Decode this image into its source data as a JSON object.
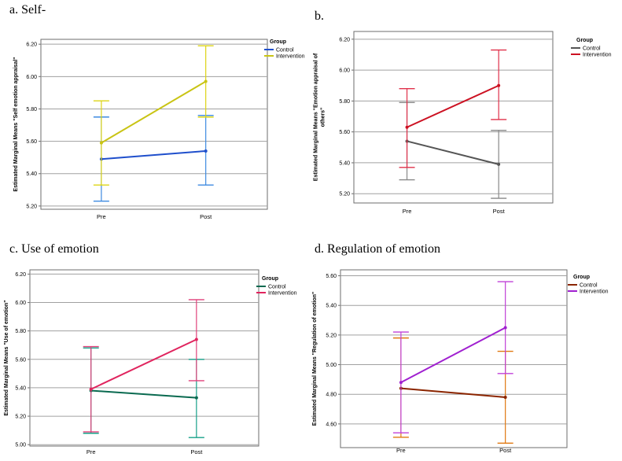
{
  "legend_title": "Group",
  "legend_labels": [
    "Control",
    "Intervention"
  ],
  "categories": [
    "Pre",
    "Post"
  ],
  "chart_data": [
    {
      "type": "line",
      "title": "a. Self-",
      "ylabel": "Estimated Marginal Means \"Self emotion appraisal\"",
      "ylabel_lines": [
        "Estimated Marginal Means \"Self emotion appraisal\""
      ],
      "categories": [
        "Pre",
        "Post"
      ],
      "ylim": [
        5.18,
        6.23
      ],
      "yticks": [
        5.2,
        5.4,
        5.6,
        5.8,
        6.0,
        6.2
      ],
      "ytick_labels": [
        "5.20",
        "5.40",
        "5.60",
        "5.80",
        "6.00",
        "6.20"
      ],
      "grid": true,
      "legend": "top-right",
      "series": [
        {
          "name": "Control",
          "color": "#1f4fcc",
          "error_color": "#3d8ae0",
          "values": [
            5.49,
            5.54
          ],
          "lower": [
            5.23,
            5.33
          ],
          "upper": [
            5.75,
            5.76
          ]
        },
        {
          "name": "Intervention",
          "color": "#c9c414",
          "error_color": "#ddd414",
          "values": [
            5.59,
            5.97
          ],
          "lower": [
            5.33,
            5.75
          ],
          "upper": [
            5.85,
            6.19
          ]
        }
      ]
    },
    {
      "type": "line",
      "title": "b.",
      "ylabel": "Estimated Marginal Means \"Emotion appraisal of others\"",
      "ylabel_lines": [
        "Estimated Marginal Means \"Emotion appraisal of",
        "others\""
      ],
      "categories": [
        "Pre",
        "Post"
      ],
      "ylim": [
        5.14,
        6.25
      ],
      "yticks": [
        5.2,
        5.4,
        5.6,
        5.8,
        6.0,
        6.2
      ],
      "ytick_labels": [
        "5.20",
        "5.40",
        "5.60",
        "5.80",
        "6.00",
        "6.20"
      ],
      "grid": true,
      "legend": "top-right",
      "series": [
        {
          "name": "Control",
          "color": "#555555",
          "error_color": "#888888",
          "values": [
            5.54,
            5.39
          ],
          "lower": [
            5.29,
            5.17
          ],
          "upper": [
            5.79,
            5.61
          ]
        },
        {
          "name": "Intervention",
          "color": "#cc1122",
          "error_color": "#e0304a",
          "values": [
            5.63,
            5.9
          ],
          "lower": [
            5.37,
            5.68
          ],
          "upper": [
            5.88,
            6.13
          ]
        }
      ]
    },
    {
      "type": "line",
      "title": "c. Use of emotion",
      "ylabel": "Estimated Marginal Means \"Use of emotion\"",
      "ylabel_lines": [
        "Estimated Marginal Means \"Use of emotion\""
      ],
      "categories": [
        "Pre",
        "Post"
      ],
      "ylim": [
        4.99,
        6.23
      ],
      "yticks": [
        5.0,
        5.2,
        5.4,
        5.6,
        5.8,
        6.0,
        6.2
      ],
      "ytick_labels": [
        "5.00",
        "5.20",
        "5.40",
        "5.60",
        "5.80",
        "6.00",
        "6.20"
      ],
      "grid": true,
      "legend": "top-right",
      "series": [
        {
          "name": "Control",
          "color": "#0a6a50",
          "error_color": "#15a088",
          "values": [
            5.38,
            5.33
          ],
          "lower": [
            5.08,
            5.05
          ],
          "upper": [
            5.68,
            5.6
          ]
        },
        {
          "name": "Intervention",
          "color": "#e0245e",
          "error_color": "#e0407a",
          "values": [
            5.39,
            5.74
          ],
          "lower": [
            5.09,
            5.45
          ],
          "upper": [
            5.69,
            6.02
          ]
        }
      ]
    },
    {
      "type": "line",
      "title": "d. Regulation of emotion",
      "ylabel": "Estimated Marginal Means \"Regulation of emotion\"",
      "ylabel_lines": [
        "Estimated Marginal Means \"Regulation of emotion\""
      ],
      "categories": [
        "Pre",
        "Post"
      ],
      "ylim": [
        4.44,
        5.64
      ],
      "yticks": [
        4.6,
        4.8,
        5.0,
        5.2,
        5.4,
        5.6
      ],
      "ytick_labels": [
        "4.60",
        "4.80",
        "5.00",
        "5.20",
        "5.40",
        "5.60"
      ],
      "grid": true,
      "legend": "top-right",
      "series": [
        {
          "name": "Control",
          "color": "#8b2500",
          "error_color": "#e07810",
          "values": [
            4.84,
            4.78
          ],
          "lower": [
            4.51,
            4.47
          ],
          "upper": [
            5.18,
            5.09
          ]
        },
        {
          "name": "Intervention",
          "color": "#a020d0",
          "error_color": "#c040d8",
          "values": [
            4.88,
            5.25
          ],
          "lower": [
            4.54,
            4.94
          ],
          "upper": [
            5.22,
            5.56
          ]
        }
      ]
    }
  ]
}
